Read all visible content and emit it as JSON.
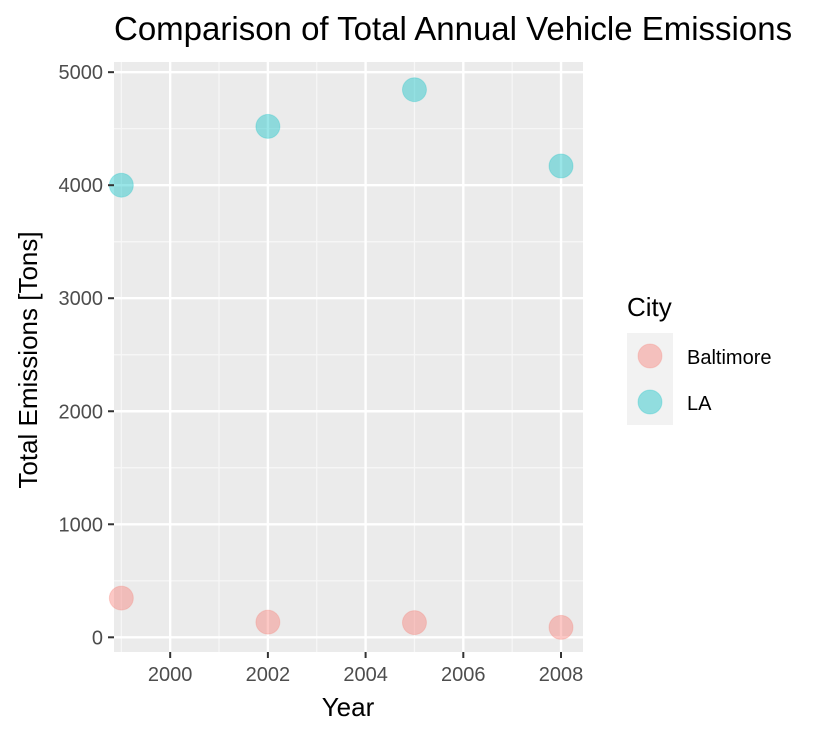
{
  "chart_data": {
    "type": "scatter",
    "title": "Comparison of Total Annual Vehicle Emissions",
    "xlabel": "Year",
    "ylabel": "Total Emissions [Tons]",
    "xlim": [
      1998.85,
      2008.45
    ],
    "ylim": [
      -130,
      5090
    ],
    "x_ticks": [
      2000,
      2002,
      2004,
      2006,
      2008
    ],
    "y_ticks": [
      0,
      1000,
      2000,
      3000,
      4000,
      5000
    ],
    "grid": true,
    "legend": {
      "title": "City",
      "placement": "right"
    },
    "series": [
      {
        "name": "Baltimore",
        "color": "#F8766D",
        "x": [
          1999,
          2002,
          2005,
          2008
        ],
        "y": [
          347,
          134,
          130,
          88
        ]
      },
      {
        "name": "LA",
        "color": "#00BFC4",
        "x": [
          1999,
          2002,
          2005,
          2008
        ],
        "y": [
          4000,
          4520,
          4845,
          4170
        ]
      }
    ]
  }
}
